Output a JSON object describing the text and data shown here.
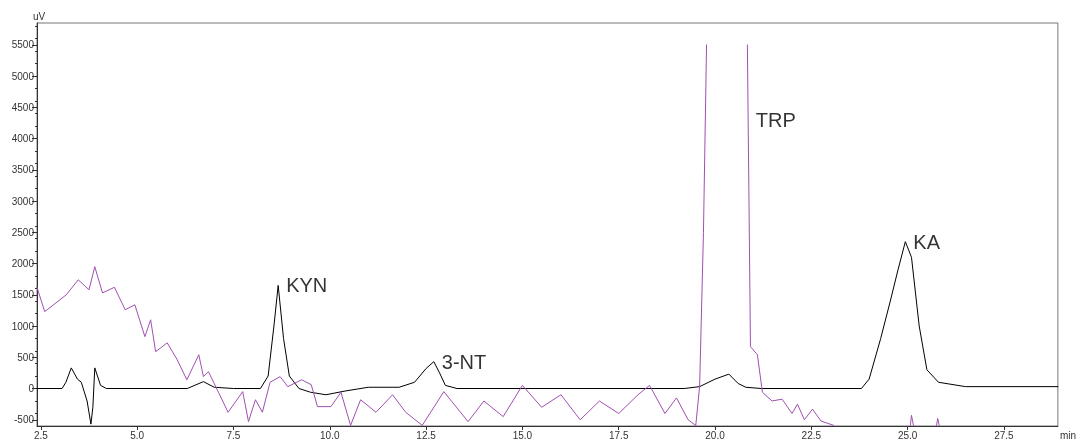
{
  "chart_data": {
    "type": "line",
    "xlabel": "min",
    "ylabel": "uV",
    "xlim": [
      2.4,
      28.9
    ],
    "ylim": [
      -600,
      5850
    ],
    "xticks": [
      2.5,
      {
        "value": 5,
        "label": "5.0"
      },
      {
        "value": 7.5,
        "label": "7.5"
      },
      {
        "value": 10,
        "label": "10.0"
      },
      {
        "value": 12.5,
        "label": "12.5"
      },
      {
        "value": 15,
        "label": "15.0"
      },
      {
        "value": 17.5,
        "label": "17.5"
      },
      {
        "value": 20,
        "label": "20.0"
      },
      {
        "value": 22.5,
        "label": "22.5"
      },
      {
        "value": 25,
        "label": "25.0"
      },
      {
        "value": 27.5,
        "label": "27.5"
      }
    ],
    "yticks": [
      -500,
      0,
      500,
      1000,
      1500,
      2000,
      2500,
      3000,
      3500,
      4000,
      4500,
      5000,
      5500
    ],
    "marker": "none",
    "line_style": "solid",
    "series": [
      {
        "color": "#a050b0",
        "x": [
          2.4,
          2.6,
          3.16,
          3.47,
          3.75,
          3.9,
          4.1,
          4.41,
          4.69,
          4.94,
          5.2,
          5.35,
          5.48,
          5.78,
          6.04,
          6.29,
          6.6,
          6.72,
          6.85,
          7.11,
          7.36,
          7.74,
          7.89,
          8.07,
          8.25,
          8.45,
          8.71,
          8.91,
          9.27,
          9.52,
          9.68,
          10.03,
          10.29,
          10.54,
          10.8,
          11.2,
          11.63,
          11.97,
          12.4,
          12.96,
          13.59,
          14.0,
          14.5,
          15.0,
          15.5,
          16.0,
          16.5,
          17.0,
          17.5,
          18.0,
          18.3,
          18.7,
          19.0,
          19.3,
          19.5,
          19.6,
          19.7,
          19.78,
          20.3,
          20.84,
          20.92,
          21.1,
          21.23,
          21.48,
          21.74,
          22.0,
          22.14,
          22.32,
          22.53,
          22.75,
          23.08,
          23.8,
          25.07,
          25.1,
          25.15,
          25.5,
          25.75,
          25.78,
          25.82
        ],
        "values": [
          1620,
          1230,
          1500,
          1740,
          1580,
          1950,
          1530,
          1620,
          1260,
          1340,
          830,
          1100,
          590,
          730,
          460,
          140,
          540,
          190,
          270,
          -60,
          -380,
          -50,
          -530,
          -180,
          -380,
          100,
          190,
          30,
          140,
          60,
          -290,
          -290,
          -60,
          -590,
          -180,
          -380,
          -100,
          -380,
          -590,
          -50,
          -530,
          -200,
          -450,
          50,
          -300,
          -100,
          -500,
          -200,
          -400,
          -100,
          50,
          -400,
          -150,
          -500,
          -590,
          30,
          2500,
          5500,
          null,
          5500,
          670,
          540,
          -60,
          -200,
          -170,
          -400,
          -250,
          -500,
          -330,
          -520,
          -590,
          null,
          -590,
          -430,
          -590,
          null,
          -590,
          -480,
          -590
        ]
      },
      {
        "color": "#000000",
        "x": [
          2.4,
          3.05,
          3.15,
          3.29,
          3.45,
          3.55,
          3.7,
          3.8,
          3.85,
          3.9,
          4.05,
          4.2,
          6.3,
          6.72,
          7.0,
          7.5,
          8.2,
          8.4,
          8.55,
          8.66,
          8.8,
          8.95,
          9.2,
          9.5,
          9.9,
          10.4,
          11.0,
          11.8,
          12.2,
          12.5,
          12.7,
          12.85,
          13.0,
          13.3,
          19.2,
          19.6,
          20.0,
          20.36,
          20.6,
          20.8,
          21.2,
          23.8,
          24.0,
          24.3,
          24.55,
          24.75,
          24.94,
          25.1,
          25.3,
          25.5,
          25.8,
          26.5,
          28.9
        ],
        "values": [
          0,
          0,
          100,
          330,
          150,
          100,
          -200,
          -570,
          -300,
          330,
          50,
          0,
          0,
          110,
          20,
          0,
          0,
          200,
          1000,
          1650,
          800,
          200,
          0,
          -60,
          -100,
          -40,
          20,
          20,
          100,
          320,
          430,
          250,
          50,
          0,
          0,
          30,
          150,
          230,
          80,
          20,
          0,
          0,
          150,
          800,
          1400,
          1900,
          2350,
          2100,
          1000,
          300,
          100,
          30,
          30
        ]
      }
    ],
    "annotations": [
      {
        "text": "KYN",
        "x": 8.66,
        "y": 1650
      },
      {
        "text": "3-NT",
        "x": 12.7,
        "y": 430
      },
      {
        "text": "TRP",
        "x": 20.85,
        "y": 4300
      },
      {
        "text": "KA",
        "x": 24.94,
        "y": 2350
      }
    ]
  }
}
